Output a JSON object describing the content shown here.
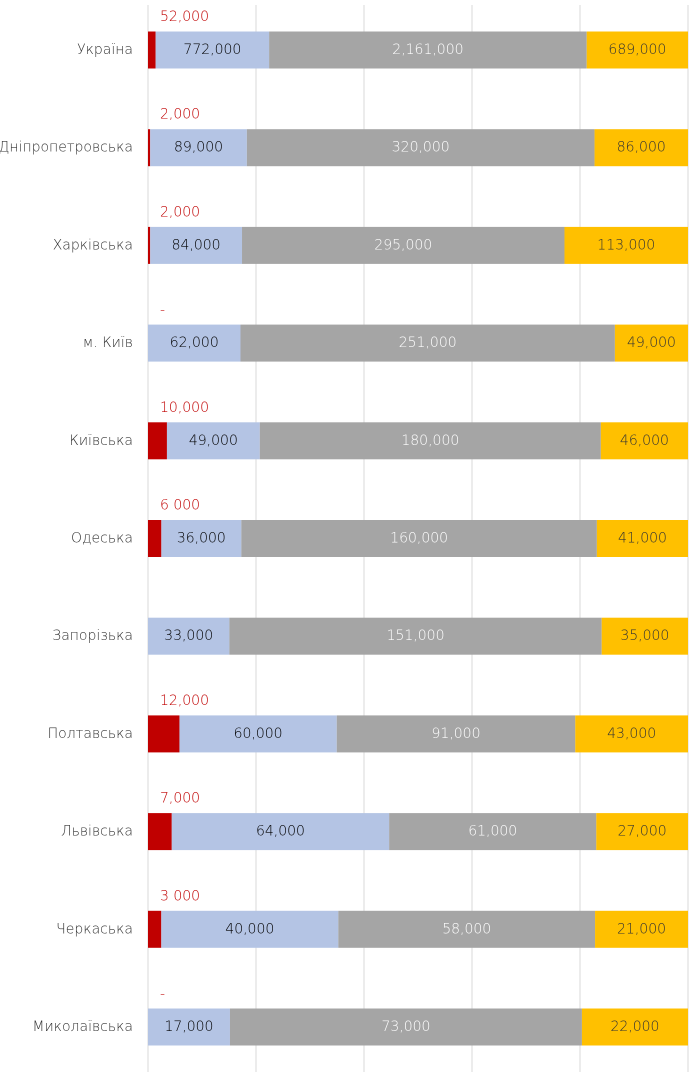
{
  "chart_data": {
    "type": "stacked-bar-100",
    "categories": [
      "Україна",
      "Дніпропетровська",
      "Харківська",
      "м. Київ",
      "Київська",
      "Одеська",
      "Запорізька",
      "Полтавська",
      "Львівська",
      "Черкаська",
      "Миколаївська"
    ],
    "series": [
      {
        "color": "#c00000",
        "values": [
          52000,
          2000,
          2000,
          0,
          10000,
          6000,
          null,
          12000,
          7000,
          3000,
          0
        ],
        "value_labels": [
          "52,000",
          "2,000",
          "2,000",
          "-",
          "10,000",
          "6 000",
          null,
          "12,000",
          "7,000",
          "3 000",
          "-"
        ]
      },
      {
        "color": "#b4c4e4",
        "values": [
          772000,
          89000,
          84000,
          62000,
          49000,
          36000,
          33000,
          60000,
          64000,
          40000,
          17000
        ],
        "value_labels": [
          "772,000",
          "89,000",
          "84,000",
          "62,000",
          "49,000",
          "36,000",
          "33,000",
          "60,000",
          "64,000",
          "40,000",
          "17,000"
        ]
      },
      {
        "color": "#a5a5a5",
        "values": [
          2161000,
          320000,
          295000,
          251000,
          180000,
          160000,
          151000,
          91000,
          61000,
          58000,
          73000
        ],
        "value_labels": [
          "2,161,000",
          "320,000",
          "295,000",
          "251,000",
          "180,000",
          "160,000",
          "151,000",
          "91,000",
          "61,000",
          "58,000",
          "73,000"
        ]
      },
      {
        "color": "#ffc000",
        "values": [
          689000,
          86000,
          113000,
          49000,
          46000,
          41000,
          35000,
          43000,
          27000,
          21000,
          22000
        ],
        "value_labels": [
          "689,000",
          "86,000",
          "113,000",
          "49,000",
          "46,000",
          "41,000",
          "35,000",
          "43,000",
          "27,000",
          "21,000",
          "22,000"
        ]
      }
    ],
    "xlim": [
      0,
      100
    ],
    "xticks": [
      0,
      20,
      40,
      60,
      80,
      100
    ],
    "grid": true
  }
}
